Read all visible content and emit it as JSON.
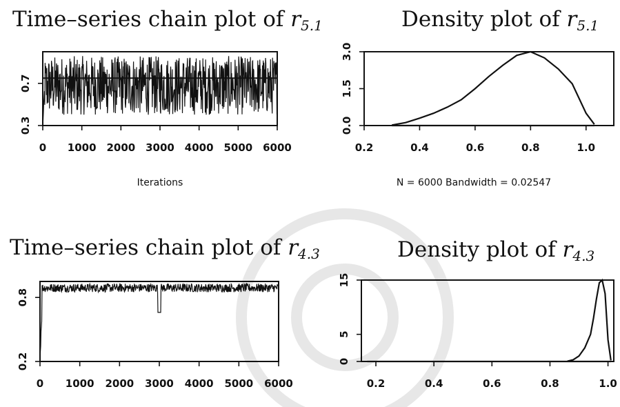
{
  "chart_data": [
    {
      "type": "line",
      "title_main": "Time–series chain plot of",
      "title_var": "r",
      "title_sub": "5.1",
      "xlabel": "Iterations",
      "ylabel": "",
      "xlim": [
        0,
        6000
      ],
      "ylim": [
        0.3,
        1.0
      ],
      "xticks": [
        0,
        1000,
        2000,
        3000,
        4000,
        5000,
        6000
      ],
      "yticks": [
        0.3,
        0.7
      ],
      "series": [
        {
          "name": "",
          "mean": 0.75,
          "start": 0.3,
          "trace_min": 0.4,
          "trace_max": 0.96
        }
      ],
      "reference_line": 0.75
    },
    {
      "type": "area",
      "title_main": "Density plot of",
      "title_var": "r",
      "title_sub": "5.1",
      "xlabel": "N = 6000   Bandwidth = 0.02547",
      "xlim": [
        0.2,
        1.1
      ],
      "ylim": [
        0,
        3.0
      ],
      "xticks": [
        0.2,
        0.4,
        0.6,
        0.8,
        1.0
      ],
      "yticks": [
        0.0,
        1.5,
        3.0
      ],
      "x": [
        0.3,
        0.35,
        0.4,
        0.45,
        0.5,
        0.55,
        0.6,
        0.65,
        0.7,
        0.75,
        0.8,
        0.85,
        0.9,
        0.95,
        1.0,
        1.03
      ],
      "y": [
        0.02,
        0.12,
        0.3,
        0.5,
        0.75,
        1.05,
        1.5,
        2.0,
        2.45,
        2.85,
        3.0,
        2.75,
        2.3,
        1.7,
        0.5,
        0.05
      ]
    },
    {
      "type": "line",
      "title_main": "Time–series chain plot of",
      "title_var": "r",
      "title_sub": "4.3",
      "xlabel": "",
      "xlim": [
        0,
        6000
      ],
      "ylim": [
        0.2,
        0.95
      ],
      "xticks": [
        0,
        1000,
        2000,
        3000,
        4000,
        5000,
        6000
      ],
      "yticks": [
        0.2,
        0.8
      ],
      "series": [
        {
          "name": "",
          "mean": 0.9,
          "start": 0.2,
          "trace_min": 0.85,
          "trace_max": 0.93
        }
      ]
    },
    {
      "type": "area",
      "title_main": "Density plot of",
      "title_var": "r",
      "title_sub": "4.3",
      "xlabel": "",
      "xlim": [
        0.15,
        1.02
      ],
      "ylim": [
        0,
        15
      ],
      "xticks": [
        0.2,
        0.4,
        0.6,
        0.8,
        1.0
      ],
      "yticks": [
        0,
        5,
        15
      ],
      "x": [
        0.86,
        0.88,
        0.9,
        0.92,
        0.94,
        0.95,
        0.96,
        0.97,
        0.98,
        0.99,
        1.0,
        1.01
      ],
      "y": [
        0.05,
        0.3,
        1.0,
        2.5,
        5.0,
        8.0,
        11.5,
        14.5,
        15.0,
        12.5,
        4.0,
        0.2
      ]
    }
  ]
}
